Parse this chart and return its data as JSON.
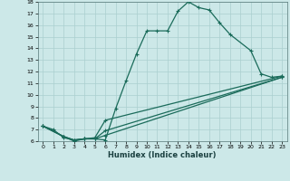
{
  "xlabel": "Humidex (Indice chaleur)",
  "background_color": "#cce8e8",
  "grid_color": "#aacfcf",
  "line_color": "#1a6b5a",
  "xlim": [
    -0.5,
    23.5
  ],
  "ylim": [
    6,
    18
  ],
  "xticks": [
    0,
    1,
    2,
    3,
    4,
    5,
    6,
    7,
    8,
    9,
    10,
    11,
    12,
    13,
    14,
    15,
    16,
    17,
    18,
    19,
    20,
    21,
    22,
    23
  ],
  "yticks": [
    6,
    7,
    8,
    9,
    10,
    11,
    12,
    13,
    14,
    15,
    16,
    17,
    18
  ],
  "curve1_x": [
    0,
    1,
    2,
    3,
    4,
    5,
    6,
    7,
    8,
    9,
    10,
    11,
    12,
    13,
    14,
    15,
    16,
    17,
    18,
    20,
    21,
    22,
    23
  ],
  "curve1_y": [
    7.3,
    7.0,
    6.3,
    6.1,
    6.2,
    6.2,
    6.1,
    8.8,
    11.2,
    13.5,
    15.5,
    15.5,
    15.5,
    17.2,
    18.0,
    17.5,
    17.3,
    16.2,
    15.2,
    13.8,
    11.8,
    11.5,
    11.6
  ],
  "curve2_x": [
    0,
    2,
    3,
    4,
    5,
    6,
    23
  ],
  "curve2_y": [
    7.3,
    6.4,
    6.0,
    6.2,
    6.3,
    7.8,
    11.6
  ],
  "curve3_x": [
    0,
    2,
    3,
    4,
    5,
    6,
    23
  ],
  "curve3_y": [
    7.3,
    6.4,
    6.1,
    6.2,
    6.2,
    6.9,
    11.5
  ],
  "curve4_x": [
    0,
    2,
    3,
    4,
    5,
    6,
    23
  ],
  "curve4_y": [
    7.3,
    6.4,
    6.1,
    6.2,
    6.2,
    6.5,
    11.5
  ],
  "marker_style": "+",
  "marker_size": 3.5,
  "linewidth": 0.9
}
